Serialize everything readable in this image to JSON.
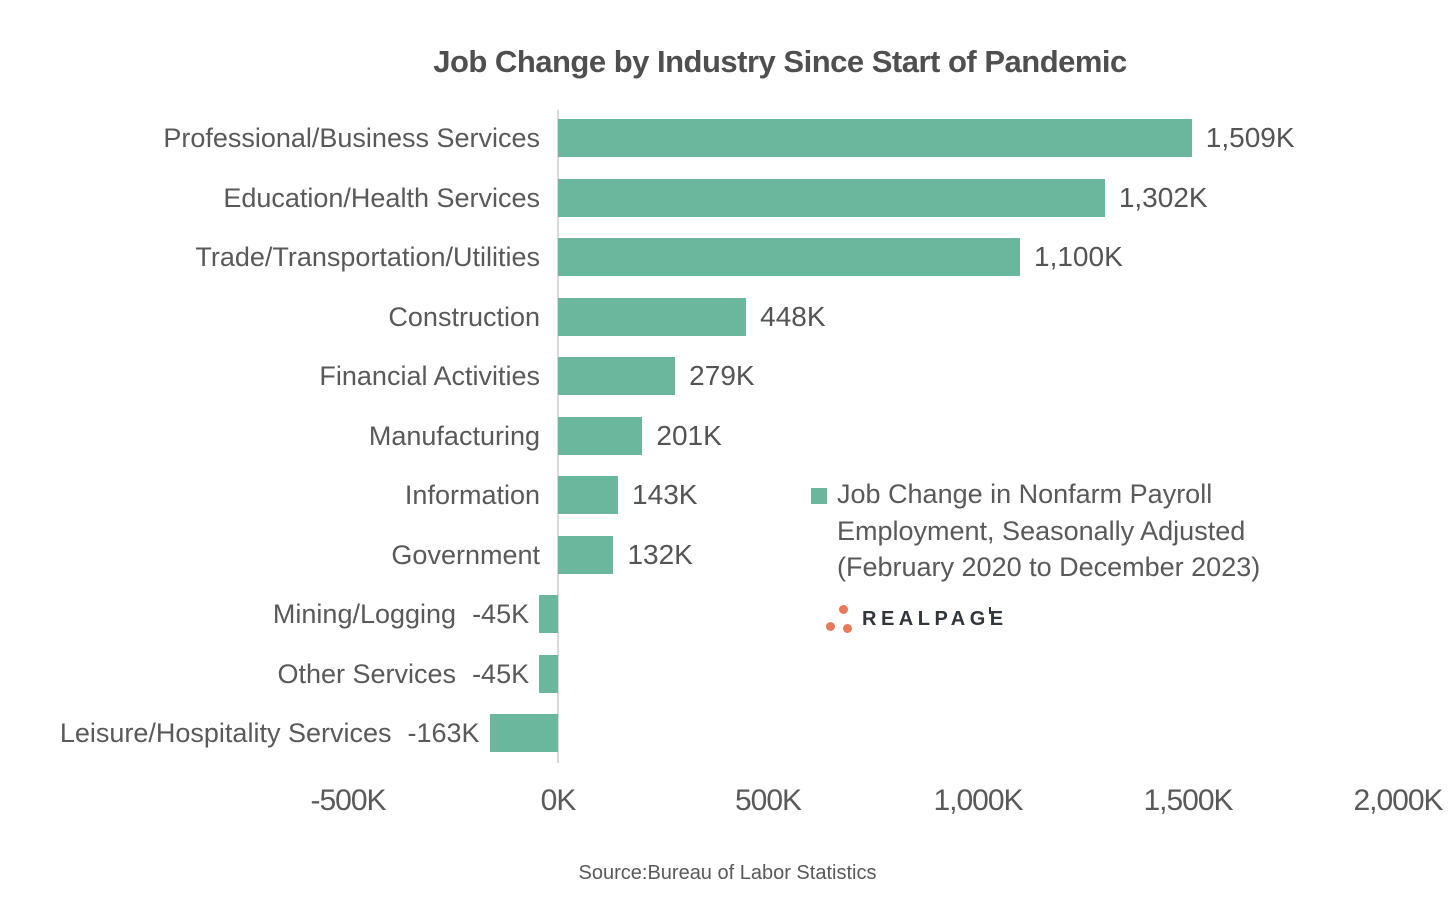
{
  "chart_data": {
    "type": "bar",
    "orientation": "horizontal",
    "title": "Job Change by Industry Since Start of Pandemic",
    "categories": [
      "Professional/Business Services",
      "Education/Health Services",
      "Trade/Transportation/Utilities",
      "Construction",
      "Financial Activities",
      "Manufacturing",
      "Information",
      "Government",
      "Mining/Logging",
      "Other Services",
      "Leisure/Hospitality Services"
    ],
    "values": [
      1509,
      1302,
      1100,
      448,
      279,
      201,
      143,
      132,
      -45,
      -45,
      -163
    ],
    "value_labels": [
      "1,509K",
      "1,302K",
      "1,100K",
      "448K",
      "279K",
      "201K",
      "143K",
      "132K",
      "-45K",
      "-45K",
      "-163K"
    ],
    "unit": "K",
    "xlim": [
      -500,
      2000
    ],
    "x_tick_values": [
      -500,
      0,
      500,
      1000,
      1500,
      2000
    ],
    "x_tick_labels": [
      "-500K",
      "0K",
      "500K",
      "1,000K",
      "1,500K",
      "2,000K"
    ],
    "grid": false,
    "bar_color": "#6ab79d",
    "axis_line_color": "#d9d9d9",
    "legend": {
      "swatch_color": "#6ab79d",
      "position": "center-right",
      "line1": "Job Change in Nonfarm Payroll",
      "line2": "Employment, Seasonally Adjusted",
      "line3": "(February 2020 to December 2023)"
    },
    "source": "Source:Bureau of Labor Statistics"
  },
  "logo": {
    "text": "REALPAGE",
    "dots_color": "#e8795c",
    "text_color": "#31353c"
  }
}
